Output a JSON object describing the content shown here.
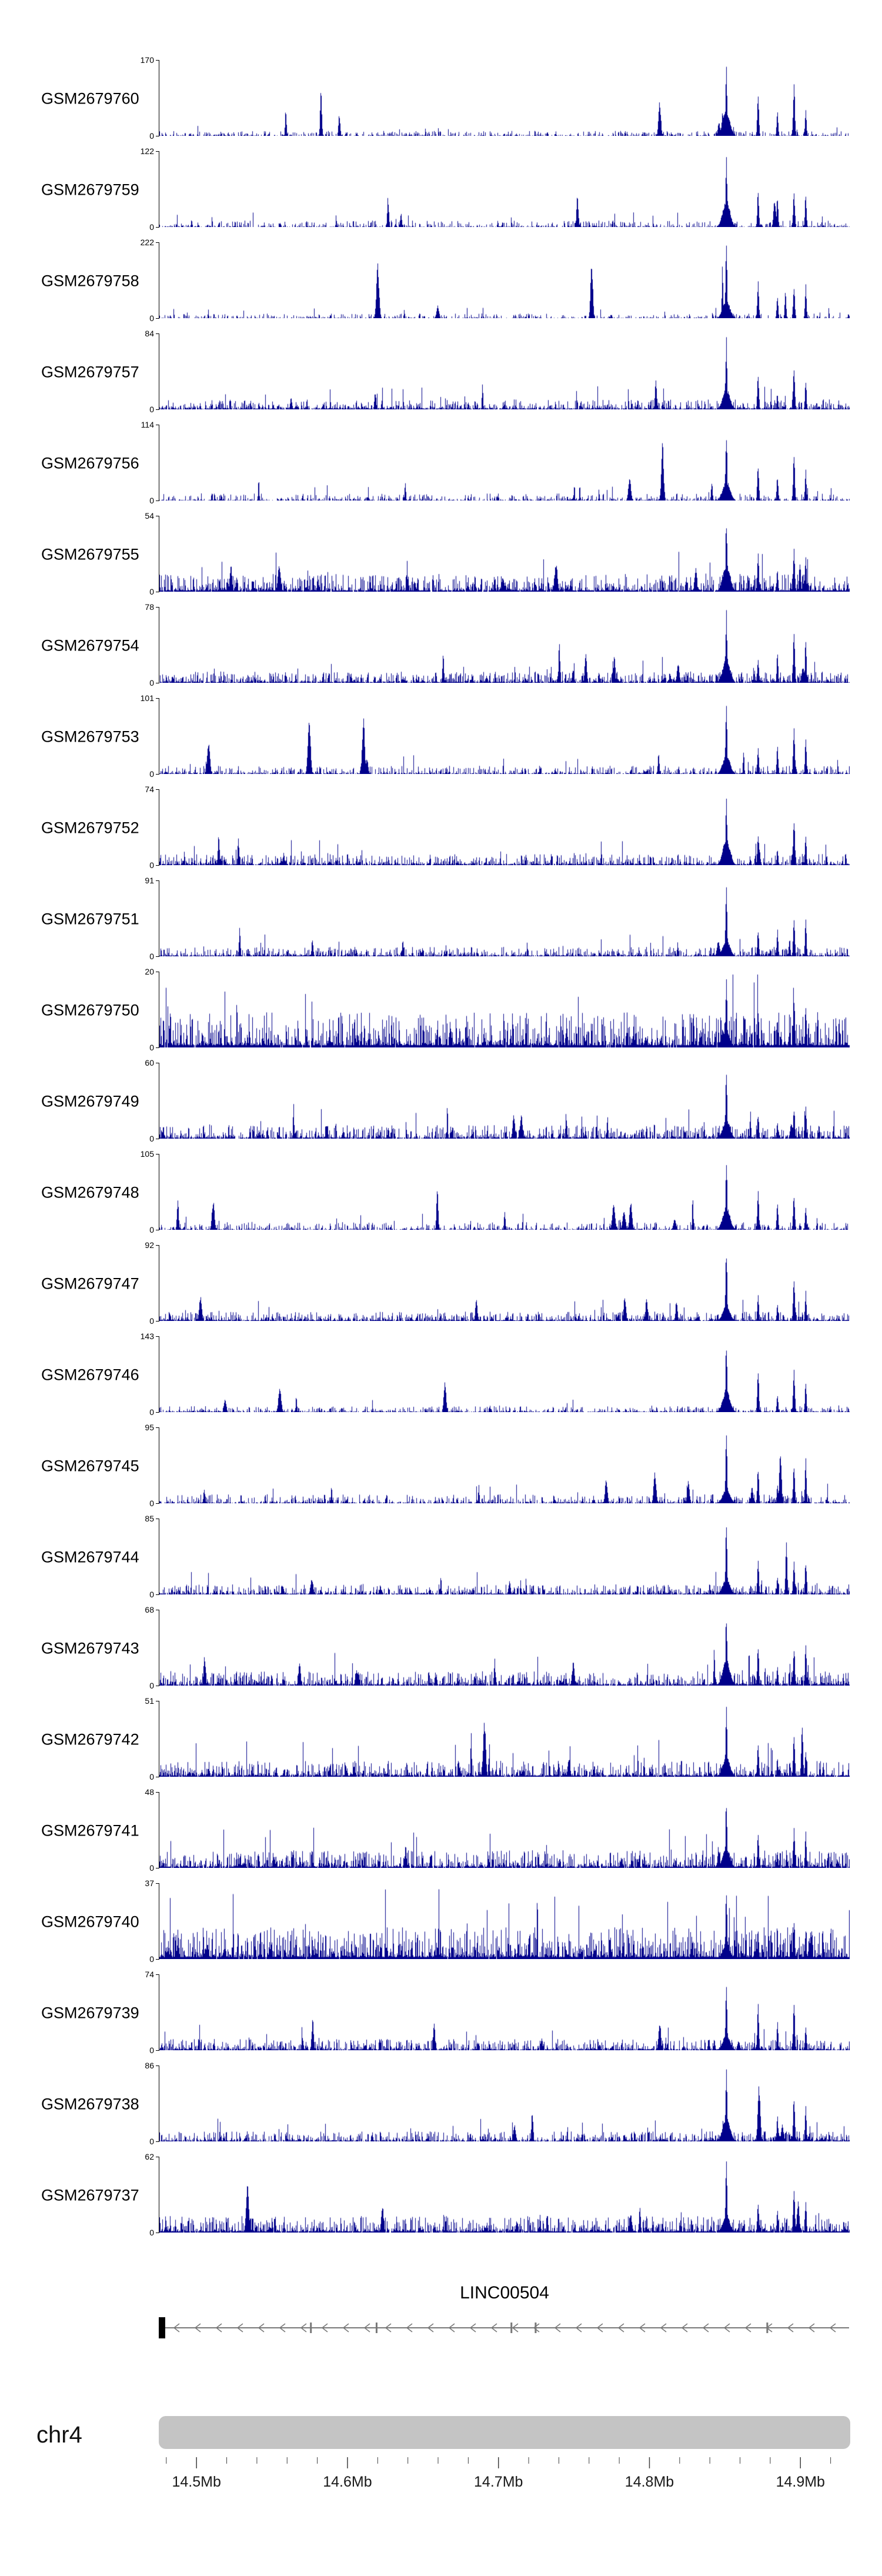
{
  "chart_data": {
    "type": "coverage-tracks",
    "description": "Genome browser view of 24 GEO sample coverage tracks over chr4:14.475-14.933Mb",
    "signal_color": "#00008B",
    "y_axis_zero_label": "0",
    "x_axis": {
      "domain_mb": [
        14.475,
        14.933
      ],
      "ticks_mb": [
        14.5,
        14.6,
        14.7,
        14.8,
        14.9
      ],
      "labels": [
        "14.5Mb",
        "14.6Mb",
        "14.7Mb",
        "14.8Mb",
        "14.9Mb"
      ],
      "minor_tick_step_mb": 0.02
    },
    "shared_peaks": [
      {
        "frac": 0.821,
        "rel": 1.0,
        "sigma": 1.3
      },
      {
        "frac": 0.821,
        "rel": 0.3,
        "sigma": 6.0
      },
      {
        "frac": 0.867,
        "rel": 0.5,
        "sigma": 1.3
      },
      {
        "frac": 0.895,
        "rel": 0.33,
        "sigma": 1.2
      },
      {
        "frac": 0.919,
        "rel": 0.6,
        "sigma": 1.4
      },
      {
        "frac": 0.936,
        "rel": 0.5,
        "sigma": 1.2
      }
    ],
    "tracks": [
      {
        "name": "GSM2679760",
        "ymax": 170,
        "density": 0.6,
        "noise": 0.042
      },
      {
        "name": "GSM2679759",
        "ymax": 122,
        "density": 0.55,
        "noise": 0.055
      },
      {
        "name": "GSM2679758",
        "ymax": 222,
        "density": 0.5,
        "noise": 0.04
      },
      {
        "name": "GSM2679757",
        "ymax": 84,
        "density": 0.85,
        "noise": 0.085
      },
      {
        "name": "GSM2679756",
        "ymax": 114,
        "density": 0.6,
        "noise": 0.06
      },
      {
        "name": "GSM2679755",
        "ymax": 54,
        "density": 0.95,
        "noise": 0.15
      },
      {
        "name": "GSM2679754",
        "ymax": 78,
        "density": 0.9,
        "noise": 0.095
      },
      {
        "name": "GSM2679753",
        "ymax": 101,
        "density": 0.7,
        "noise": 0.07
      },
      {
        "name": "GSM2679752",
        "ymax": 74,
        "density": 0.85,
        "noise": 0.095
      },
      {
        "name": "GSM2679751",
        "ymax": 91,
        "density": 0.85,
        "noise": 0.08
      },
      {
        "name": "GSM2679750",
        "ymax": 20,
        "density": 0.98,
        "noise": 0.3
      },
      {
        "name": "GSM2679749",
        "ymax": 60,
        "density": 0.85,
        "noise": 0.115
      },
      {
        "name": "GSM2679748",
        "ymax": 105,
        "density": 0.6,
        "noise": 0.065
      },
      {
        "name": "GSM2679747",
        "ymax": 92,
        "density": 0.85,
        "noise": 0.08
      },
      {
        "name": "GSM2679746",
        "ymax": 143,
        "density": 0.7,
        "noise": 0.05
      },
      {
        "name": "GSM2679745",
        "ymax": 95,
        "density": 0.7,
        "noise": 0.075
      },
      {
        "name": "GSM2679744",
        "ymax": 85,
        "density": 0.85,
        "noise": 0.085
      },
      {
        "name": "GSM2679743",
        "ymax": 68,
        "density": 0.92,
        "noise": 0.12
      },
      {
        "name": "GSM2679742",
        "ymax": 51,
        "density": 0.92,
        "noise": 0.135
      },
      {
        "name": "GSM2679741",
        "ymax": 48,
        "density": 0.93,
        "noise": 0.15
      },
      {
        "name": "GSM2679740",
        "ymax": 37,
        "density": 0.98,
        "noise": 0.27
      },
      {
        "name": "GSM2679739",
        "ymax": 74,
        "density": 0.85,
        "noise": 0.095
      },
      {
        "name": "GSM2679738",
        "ymax": 86,
        "density": 0.85,
        "noise": 0.085
      },
      {
        "name": "GSM2679737",
        "ymax": 62,
        "density": 0.95,
        "noise": 0.14
      }
    ],
    "gene_track": {
      "title": "LINC00504",
      "strand": "minus",
      "exon_fracs": [
        0.0,
        0.22,
        0.315,
        0.51,
        0.545,
        0.88
      ],
      "line_color": "#787878",
      "exon_color": "#000000"
    },
    "chromosome": {
      "label": "chr4",
      "ideogram_color": "#c4c4c4"
    }
  }
}
